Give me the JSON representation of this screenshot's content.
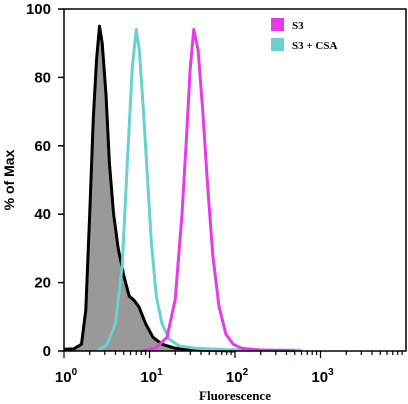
{
  "chart_data": {
    "type": "area",
    "x_scale": "log",
    "xlim": [
      1,
      10000
    ],
    "ylim": [
      0,
      100
    ],
    "xlabel": "Fluorescence",
    "ylabel": "% of Max",
    "y_ticks": [
      "0",
      "20",
      "40",
      "60",
      "80",
      "100"
    ],
    "x_ticks": [
      {
        "base": "10",
        "exp": "0"
      },
      {
        "base": "10",
        "exp": "1"
      },
      {
        "base": "10",
        "exp": "2"
      },
      {
        "base": "10",
        "exp": "3"
      }
    ],
    "legend": {
      "placement": "top-right",
      "entries": [
        {
          "label": "S3",
          "color": "#e83be8"
        },
        {
          "label": "S3 + CSA",
          "color": "#6ad0d0"
        }
      ]
    },
    "series": [
      {
        "color": "#000000",
        "fill": "#999999",
        "filled": true,
        "points": [
          [
            1.0,
            0.5
          ],
          [
            1.3,
            0.6
          ],
          [
            1.6,
            2
          ],
          [
            1.8,
            12
          ],
          [
            2.0,
            40
          ],
          [
            2.2,
            68
          ],
          [
            2.4,
            85
          ],
          [
            2.6,
            95
          ],
          [
            2.8,
            90
          ],
          [
            3.1,
            75
          ],
          [
            3.4,
            55
          ],
          [
            3.8,
            40
          ],
          [
            4.3,
            30
          ],
          [
            5.0,
            22
          ],
          [
            5.8,
            16
          ],
          [
            6.5,
            15
          ],
          [
            7.5,
            13
          ],
          [
            9.0,
            8
          ],
          [
            11,
            4
          ],
          [
            14,
            2
          ],
          [
            20,
            0.8
          ],
          [
            35,
            0.3
          ],
          [
            100,
            0
          ]
        ]
      },
      {
        "name": "S3 + CSA",
        "color": "#6ad0d0",
        "filled": false,
        "points": [
          [
            2.5,
            0
          ],
          [
            3.2,
            2
          ],
          [
            4.0,
            8
          ],
          [
            4.8,
            25
          ],
          [
            5.5,
            55
          ],
          [
            6.3,
            83
          ],
          [
            7.0,
            94
          ],
          [
            7.6,
            88
          ],
          [
            8.5,
            70
          ],
          [
            9.5,
            50
          ],
          [
            10.5,
            32
          ],
          [
            12,
            16
          ],
          [
            14,
            8
          ],
          [
            17,
            3.5
          ],
          [
            22,
            1.5
          ],
          [
            35,
            0.8
          ],
          [
            80,
            0.4
          ],
          [
            200,
            0.3
          ],
          [
            600,
            0.2
          ]
        ]
      },
      {
        "name": "S3",
        "color": "#e83be8",
        "filled": false,
        "points": [
          [
            8,
            0
          ],
          [
            12,
            1
          ],
          [
            16,
            4
          ],
          [
            20,
            15
          ],
          [
            24,
            40
          ],
          [
            27,
            62
          ],
          [
            30,
            83
          ],
          [
            33,
            94
          ],
          [
            37,
            88
          ],
          [
            42,
            70
          ],
          [
            48,
            48
          ],
          [
            55,
            28
          ],
          [
            65,
            13
          ],
          [
            78,
            5
          ],
          [
            95,
            2
          ],
          [
            120,
            0.8
          ],
          [
            200,
            0.3
          ],
          [
            500,
            0.1
          ]
        ]
      }
    ]
  }
}
